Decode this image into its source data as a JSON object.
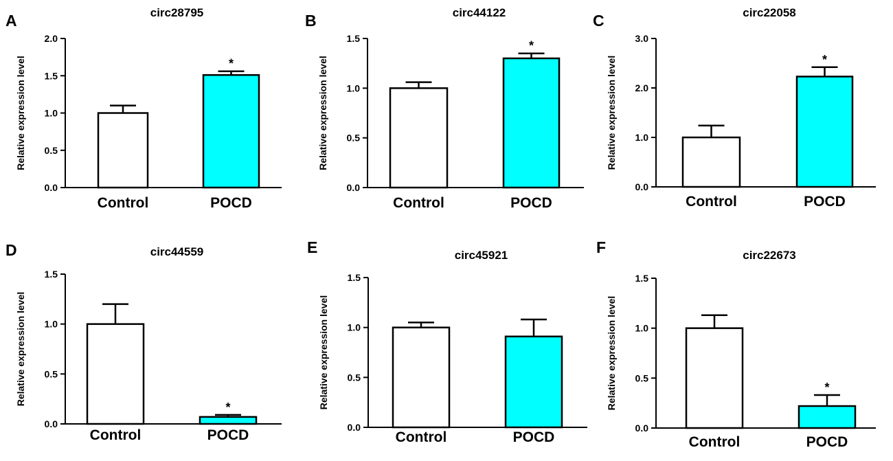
{
  "colors": {
    "control": "#ffffff",
    "pocd": "#00ffff",
    "stroke": "#000000"
  },
  "chart_data": [
    {
      "type": "bar",
      "panel": "A",
      "title": "circ28795",
      "ylabel": "Relative expression level",
      "xlabel": "",
      "categories": [
        "Control",
        "POCD"
      ],
      "values": [
        1.0,
        1.51
      ],
      "errors": [
        0.1,
        0.05
      ],
      "significance": [
        "",
        "*"
      ],
      "ylim": [
        0,
        2.0
      ],
      "yticks": [
        "0.0",
        "0.5",
        "1.0",
        "1.5",
        "2.0"
      ]
    },
    {
      "type": "bar",
      "panel": "B",
      "title": "circ44122",
      "ylabel": "Relative expression level",
      "xlabel": "",
      "categories": [
        "Control",
        "POCD"
      ],
      "values": [
        1.0,
        1.3
      ],
      "errors": [
        0.06,
        0.05
      ],
      "significance": [
        "",
        "*"
      ],
      "ylim": [
        0,
        1.5
      ],
      "yticks": [
        "0.0",
        "0.5",
        "1.0",
        "1.5"
      ]
    },
    {
      "type": "bar",
      "panel": "C",
      "title": "circ22058",
      "ylabel": "Relative expression level",
      "xlabel": "",
      "categories": [
        "Control",
        "POCD"
      ],
      "values": [
        1.0,
        2.23
      ],
      "errors": [
        0.24,
        0.19
      ],
      "significance": [
        "",
        "*"
      ],
      "ylim": [
        0,
        3.0
      ],
      "yticks": [
        "0.0",
        "1.0",
        "2.0",
        "3.0"
      ]
    },
    {
      "type": "bar",
      "panel": "D",
      "title": "circ44559",
      "ylabel": "Relative expression level",
      "xlabel": "",
      "categories": [
        "Control",
        "POCD"
      ],
      "values": [
        1.0,
        0.07
      ],
      "errors": [
        0.2,
        0.02
      ],
      "significance": [
        "",
        "*"
      ],
      "ylim": [
        0,
        1.5
      ],
      "yticks": [
        "0.0",
        "0.5",
        "1.0",
        "1.5"
      ]
    },
    {
      "type": "bar",
      "panel": "E",
      "title": "circ45921",
      "ylabel": "Relative expression level",
      "xlabel": "",
      "categories": [
        "Control",
        "POCD"
      ],
      "values": [
        1.0,
        0.91
      ],
      "errors": [
        0.05,
        0.17
      ],
      "significance": [
        "",
        ""
      ],
      "ylim": [
        0,
        1.5
      ],
      "yticks": [
        "0.0",
        "0.5",
        "1.0",
        "1.5"
      ]
    },
    {
      "type": "bar",
      "panel": "F",
      "title": "circ22673",
      "ylabel": "Relative expression level",
      "xlabel": "",
      "categories": [
        "Control",
        "POCD"
      ],
      "values": [
        1.0,
        0.22
      ],
      "errors": [
        0.13,
        0.11
      ],
      "significance": [
        "",
        "*"
      ],
      "ylim": [
        0,
        1.5
      ],
      "yticks": [
        "0.0",
        "0.5",
        "1.0",
        "1.5"
      ]
    }
  ]
}
